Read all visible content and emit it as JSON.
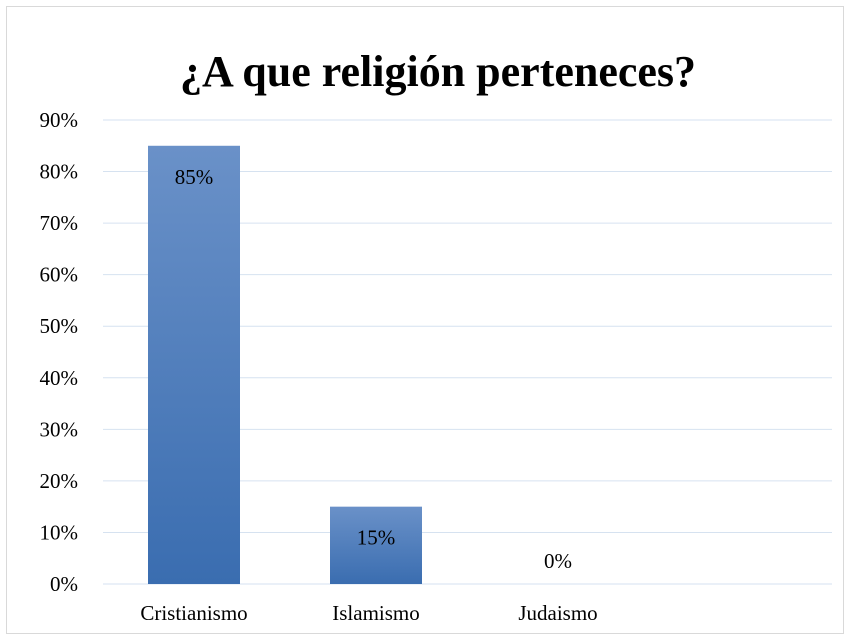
{
  "chart_data": {
    "type": "bar",
    "title": "¿A que religión perteneces?",
    "categories": [
      "Cristianismo",
      "Islamismo",
      "Judaismo"
    ],
    "values": [
      85,
      15,
      0
    ],
    "data_labels": [
      "85%",
      "15%",
      "0%"
    ],
    "yticks": [
      "0%",
      "10%",
      "20%",
      "30%",
      "40%",
      "50%",
      "60%",
      "70%",
      "80%",
      "90%"
    ],
    "ylim": [
      0,
      90
    ],
    "xlabel": "",
    "ylabel": "",
    "grid": true,
    "legend": "none",
    "colors": {
      "bar_top": "#6a91c8",
      "bar_bottom": "#3a6db0",
      "grid": "#d6e2f0",
      "text": "#000000"
    }
  }
}
